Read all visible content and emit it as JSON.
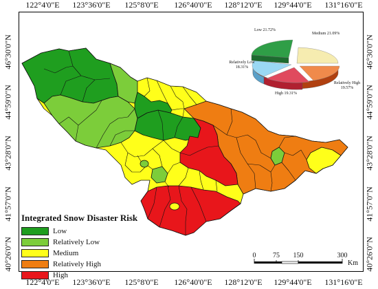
{
  "map": {
    "top_ticks": [
      "122°4'0\"E",
      "123°36'0\"E",
      "125°8'0\"E",
      "126°40'0\"E",
      "128°12'0\"E",
      "129°44'0\"E",
      "131°16'0\"E"
    ],
    "bottom_ticks": [
      "122°4'0\"E",
      "123°36'0\"E",
      "125°8'0\"E",
      "126°40'0\"E",
      "128°12'0\"E",
      "129°44'0\"E",
      "131°16'0\"E"
    ],
    "left_ticks": [
      "46°30'0\"N",
      "44°59'0\"N",
      "43°28'0\"N",
      "41°57'0\"N",
      "40°26'0\"N"
    ],
    "right_ticks": [
      "46°30'0\"N",
      "44°59'0\"N",
      "43°28'0\"N",
      "41°57'0\"N",
      "40°26'0\"N"
    ]
  },
  "legend": {
    "title": "Integrated Snow Disaster Risk",
    "items": [
      {
        "label": "Low",
        "color": "#1f9e1f"
      },
      {
        "label": "Relatively Low",
        "color": "#7ccd3a"
      },
      {
        "label": "Medium",
        "color": "#ffff1a"
      },
      {
        "label": "Relatively High",
        "color": "#ef7d12"
      },
      {
        "label": "High",
        "color": "#e8161b"
      }
    ]
  },
  "pie": {
    "slices": [
      {
        "name": "Low",
        "pct": "21.72%",
        "label": "Low 21.72%",
        "color": "#2f9e47"
      },
      {
        "name": "Medium",
        "pct": "21.09%",
        "label": "Medium 21.09%",
        "color": "#f2e8a0"
      },
      {
        "name": "Relatively High",
        "pct": "19.57%",
        "label": "Relatively High 19.57%",
        "color": "#f08a4b"
      },
      {
        "name": "High",
        "pct": "19.31%",
        "label": "High 19.31%",
        "color": "#e2445a"
      },
      {
        "name": "Relatively Low",
        "pct": "18.31%",
        "label": "Relatively Low 18.31%",
        "color": "#8ed2f0"
      }
    ]
  },
  "scale": {
    "ticks": [
      "0",
      "75",
      "150",
      "300"
    ],
    "unit": "Km"
  }
}
